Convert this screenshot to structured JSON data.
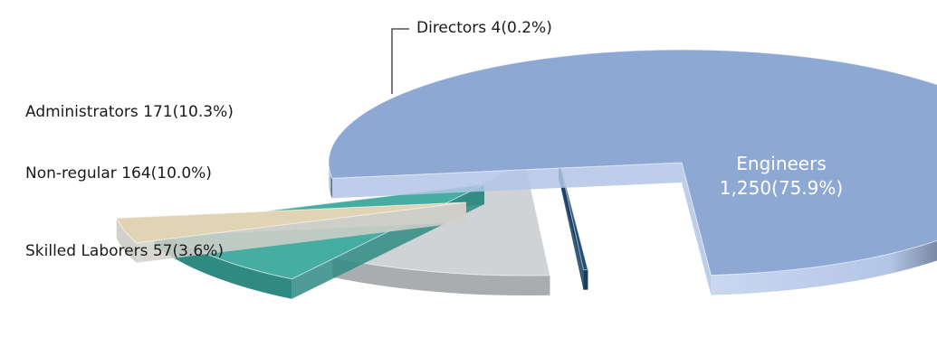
{
  "chart_data": {
    "type": "pie",
    "style": "3d-exploded",
    "slices": [
      {
        "name": "Engineers",
        "count": "1,250",
        "percent": "75.9%",
        "value": 75.9,
        "color": "#8ea8d4",
        "side_color": "#b3c6e6",
        "label_position": "inside"
      },
      {
        "name": "Directors",
        "count": "4",
        "percent": "0.2%",
        "value": 0.2,
        "color": "#1f4e79",
        "side_color": "#173e61",
        "label_position": "leader-line"
      },
      {
        "name": "Administrators",
        "count": "171",
        "percent": "10.3%",
        "value": 10.3,
        "color": "#cfd3d6",
        "side_color": "#a9adaf",
        "label_position": "left"
      },
      {
        "name": "Non-regular",
        "count": "164",
        "percent": "10.0%",
        "value": 10.0,
        "color": "#46ada3",
        "side_color": "#2f8b82",
        "label_position": "left"
      },
      {
        "name": "Skilled Laborers",
        "count": "57",
        "percent": "3.6%",
        "value": 3.6,
        "color": "#e1d4b5",
        "side_color": "#d2d0ca",
        "label_position": "left"
      }
    ],
    "labels": {
      "engineers_name": "Engineers",
      "engineers_value": "1,250(75.9%)",
      "directors": "Directors 4(0.2%)",
      "administrators": "Administrators 171(10.3%)",
      "non_regular": "Non-regular 164(10.0%)",
      "skilled_laborers": "Skilled Laborers 57(3.6%)"
    }
  }
}
